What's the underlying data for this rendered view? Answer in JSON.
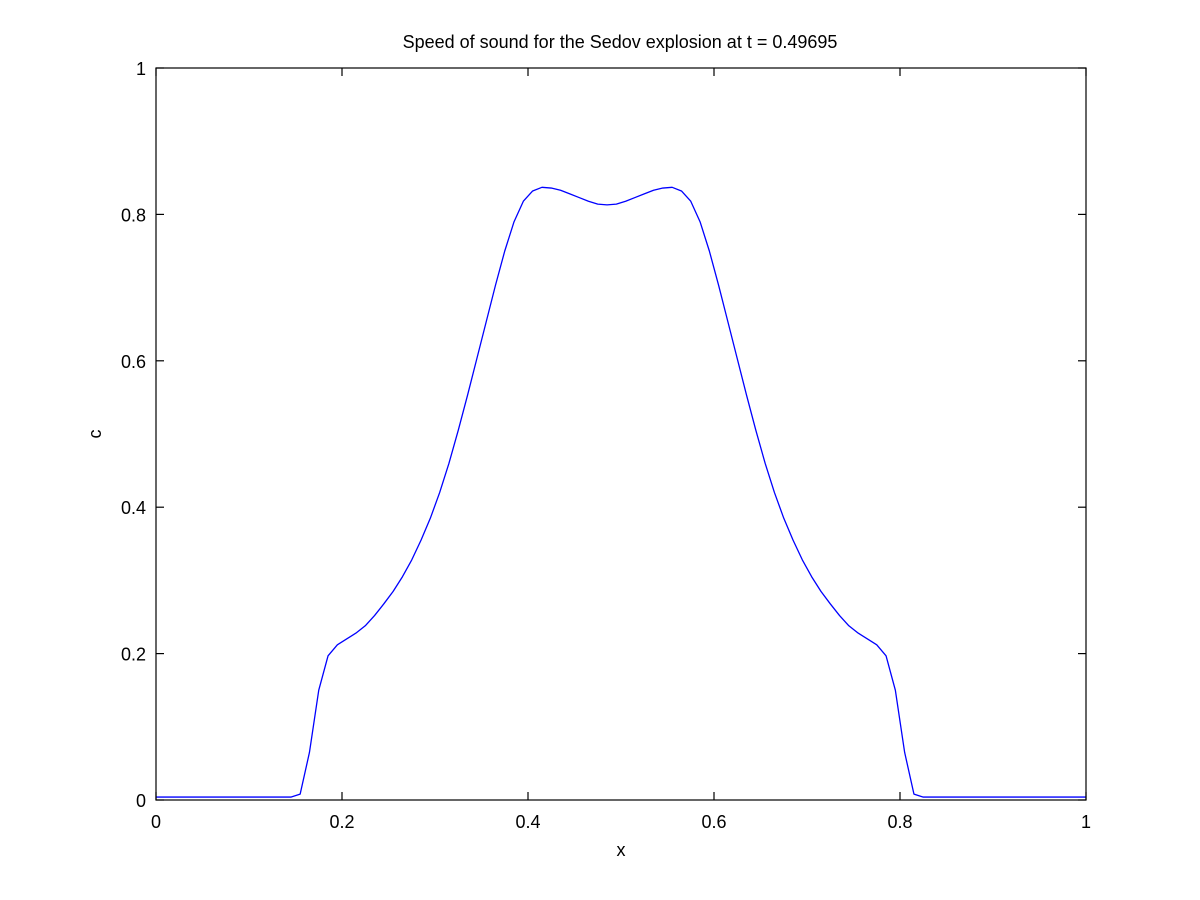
{
  "chart_data": {
    "type": "line",
    "title": "Speed of sound for the Sedov explosion at t = 0.49695",
    "xlabel": "x",
    "ylabel": "c",
    "xlim": [
      0,
      1
    ],
    "ylim": [
      0,
      1
    ],
    "xticks": [
      0,
      0.2,
      0.4,
      0.6,
      0.8,
      1
    ],
    "xtick_labels": [
      "0",
      "0.2",
      "0.4",
      "0.6",
      "0.8",
      "1"
    ],
    "yticks": [
      0,
      0.2,
      0.4,
      0.6,
      0.8,
      1
    ],
    "ytick_labels": [
      "0",
      "0.2",
      "0.4",
      "0.6",
      "0.8",
      "1"
    ],
    "grid": false,
    "series": [
      {
        "name": "c",
        "color": "#0000ff",
        "x": [
          0,
          0.05,
          0.1,
          0.145,
          0.155,
          0.165,
          0.175,
          0.185,
          0.195,
          0.205,
          0.215,
          0.225,
          0.235,
          0.245,
          0.255,
          0.265,
          0.275,
          0.285,
          0.295,
          0.305,
          0.315,
          0.325,
          0.335,
          0.345,
          0.355,
          0.365,
          0.375,
          0.385,
          0.395,
          0.405,
          0.415,
          0.425,
          0.435,
          0.445,
          0.455,
          0.465,
          0.475,
          0.485,
          0.495,
          0.505,
          0.515,
          0.525,
          0.535,
          0.545,
          0.555,
          0.565,
          0.575,
          0.585,
          0.595,
          0.605,
          0.615,
          0.625,
          0.635,
          0.645,
          0.655,
          0.665,
          0.675,
          0.685,
          0.695,
          0.705,
          0.715,
          0.725,
          0.735,
          0.745,
          0.755,
          0.765,
          0.775,
          0.785,
          0.795,
          0.805,
          0.815,
          0.825,
          0.835,
          0.845,
          0.855,
          0.9,
          0.95,
          1.0
        ],
        "values": [
          0.004,
          0.004,
          0.004,
          0.004,
          0.008,
          0.065,
          0.15,
          0.197,
          0.212,
          0.22,
          0.228,
          0.238,
          0.252,
          0.268,
          0.285,
          0.305,
          0.328,
          0.355,
          0.385,
          0.42,
          0.46,
          0.505,
          0.553,
          0.603,
          0.653,
          0.703,
          0.75,
          0.79,
          0.818,
          0.832,
          0.837,
          0.836,
          0.833,
          0.828,
          0.823,
          0.818,
          0.814,
          0.813,
          0.814,
          0.818,
          0.823,
          0.828,
          0.833,
          0.836,
          0.837,
          0.832,
          0.818,
          0.79,
          0.75,
          0.703,
          0.653,
          0.603,
          0.553,
          0.505,
          0.46,
          0.42,
          0.385,
          0.355,
          0.328,
          0.305,
          0.285,
          0.268,
          0.252,
          0.238,
          0.228,
          0.22,
          0.212,
          0.197,
          0.15,
          0.065,
          0.008,
          0.004,
          0.004,
          0.004,
          0.004,
          0.004,
          0.004,
          0.004
        ]
      }
    ]
  }
}
